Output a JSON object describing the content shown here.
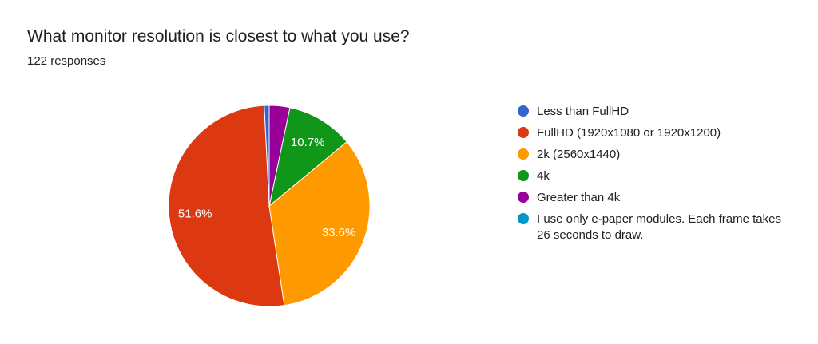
{
  "header": {
    "title": "What monitor resolution is closest to what you use?",
    "subtitle": "122 responses"
  },
  "chart_data": {
    "type": "pie",
    "title": "What monitor resolution is closest to what you use?",
    "subtitle": "122 responses",
    "legend_position": "right",
    "start_angle_deg": -90,
    "direction": "counterclockwise",
    "slices": [
      {
        "label": "Less than FullHD",
        "value": 0.8,
        "color": "#3366cc",
        "data_label": ""
      },
      {
        "label": "FullHD (1920x1080 or 1920x1200)",
        "value": 51.6,
        "color": "#dc3912",
        "data_label": "51.6%"
      },
      {
        "label": "2k (2560x1440)",
        "value": 33.6,
        "color": "#ff9900",
        "data_label": "33.6%"
      },
      {
        "label": "4k",
        "value": 10.7,
        "color": "#109618",
        "data_label": "10.7%"
      },
      {
        "label": "Greater than 4k",
        "value": 3.3,
        "color": "#990099",
        "data_label": ""
      },
      {
        "label": "I use only e-paper modules. Each frame takes 26 seconds to draw.",
        "value": 0,
        "color": "#0099c6",
        "data_label": ""
      }
    ]
  }
}
